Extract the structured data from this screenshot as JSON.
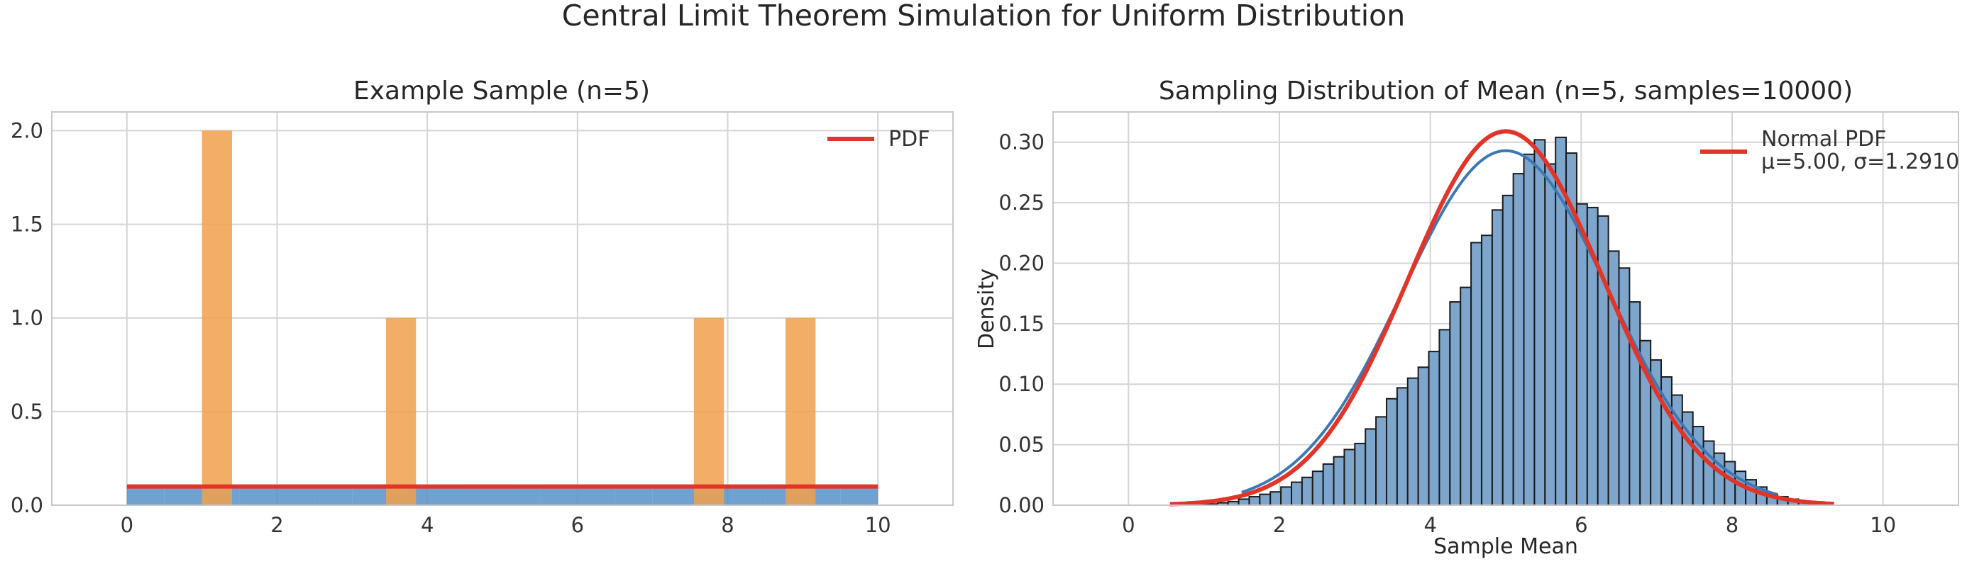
{
  "suptitle": "Central Limit Theorem Simulation for Uniform Distribution",
  "chart_data": [
    {
      "type": "bar",
      "title": "Example Sample (n=5)",
      "xlabel": "",
      "ylabel": "",
      "xlim": [
        -1,
        11
      ],
      "ylim": [
        0,
        2.1
      ],
      "xticks": [
        0,
        2,
        4,
        6,
        8,
        10
      ],
      "yticks": [
        0.0,
        0.5,
        1.0,
        1.5,
        2.0
      ],
      "grid": true,
      "legend": {
        "placement": "top-right",
        "entries": [
          "PDF"
        ]
      },
      "population_hist": {
        "color": "#4e8ac4",
        "bins": [
          {
            "x0": 0.0,
            "x1": 0.5,
            "v": 0.1
          },
          {
            "x0": 0.5,
            "x1": 1.0,
            "v": 0.1
          },
          {
            "x0": 1.0,
            "x1": 1.5,
            "v": 0.1
          },
          {
            "x0": 1.5,
            "x1": 2.0,
            "v": 0.1
          },
          {
            "x0": 2.0,
            "x1": 2.5,
            "v": 0.1
          },
          {
            "x0": 2.5,
            "x1": 3.0,
            "v": 0.1
          },
          {
            "x0": 3.0,
            "x1": 3.5,
            "v": 0.1
          },
          {
            "x0": 3.5,
            "x1": 4.0,
            "v": 0.1
          },
          {
            "x0": 4.0,
            "x1": 4.5,
            "v": 0.11
          },
          {
            "x0": 4.5,
            "x1": 5.0,
            "v": 0.1
          },
          {
            "x0": 5.0,
            "x1": 5.5,
            "v": 0.11
          },
          {
            "x0": 5.5,
            "x1": 6.0,
            "v": 0.1
          },
          {
            "x0": 6.0,
            "x1": 6.5,
            "v": 0.1
          },
          {
            "x0": 6.5,
            "x1": 7.0,
            "v": 0.1
          },
          {
            "x0": 7.0,
            "x1": 7.5,
            "v": 0.1
          },
          {
            "x0": 7.5,
            "x1": 8.0,
            "v": 0.1
          },
          {
            "x0": 8.0,
            "x1": 8.5,
            "v": 0.11
          },
          {
            "x0": 8.5,
            "x1": 9.0,
            "v": 0.1
          },
          {
            "x0": 9.0,
            "x1": 9.5,
            "v": 0.1
          },
          {
            "x0": 9.5,
            "x1": 10.0,
            "v": 0.1
          }
        ]
      },
      "sample_hist": {
        "color": "#f0a04b",
        "bins": [
          {
            "x0": 1.0,
            "x1": 1.4,
            "v": 2
          },
          {
            "x0": 3.45,
            "x1": 3.85,
            "v": 1
          },
          {
            "x0": 7.55,
            "x1": 7.95,
            "v": 1
          },
          {
            "x0": 8.77,
            "x1": 9.17,
            "v": 1
          }
        ]
      },
      "pdf_line": {
        "name": "PDF",
        "color": "#e03528",
        "x": [
          0,
          10
        ],
        "y": [
          0.1,
          0.1
        ]
      }
    },
    {
      "type": "bar",
      "title": "Sampling Distribution of Mean (n=5, samples=10000)",
      "xlabel": "Sample Mean",
      "ylabel": "Density",
      "xlim": [
        -1,
        11
      ],
      "ylim": [
        0,
        0.325
      ],
      "xticks": [
        0,
        2,
        4,
        6,
        8,
        10
      ],
      "yticks": [
        0.0,
        0.05,
        0.1,
        0.15,
        0.2,
        0.25,
        0.3
      ],
      "grid": true,
      "legend": {
        "placement": "top-right",
        "entries": [
          "Normal PDF",
          "μ=5.00, σ=1.2910"
        ]
      },
      "hist": {
        "color": "#7ea6cc",
        "edge_color": "#1a1a1a",
        "x_start": 0.9,
        "bin_width": 0.14,
        "values": [
          0.001,
          0.001,
          0.002,
          0.003,
          0.005,
          0.007,
          0.009,
          0.011,
          0.015,
          0.019,
          0.023,
          0.028,
          0.034,
          0.04,
          0.046,
          0.051,
          0.063,
          0.073,
          0.088,
          0.097,
          0.105,
          0.114,
          0.127,
          0.145,
          0.168,
          0.18,
          0.217,
          0.223,
          0.244,
          0.256,
          0.274,
          0.29,
          0.302,
          0.282,
          0.304,
          0.291,
          0.249,
          0.246,
          0.239,
          0.21,
          0.196,
          0.168,
          0.136,
          0.12,
          0.106,
          0.091,
          0.077,
          0.065,
          0.053,
          0.043,
          0.036,
          0.028,
          0.021,
          0.015,
          0.009,
          0.007,
          0.005,
          0.003,
          0.001,
          0.001
        ]
      },
      "kde_line": {
        "color": "#3b78b5",
        "mean": 5.0,
        "sd": 1.36,
        "peak": 0.293,
        "x_range": [
          1.5,
          8.6
        ]
      },
      "normal_line": {
        "name": "Normal PDF",
        "color": "#e03528",
        "mean": 5.0,
        "sd": 1.291,
        "x_range": [
          0.55,
          9.35
        ]
      }
    }
  ]
}
